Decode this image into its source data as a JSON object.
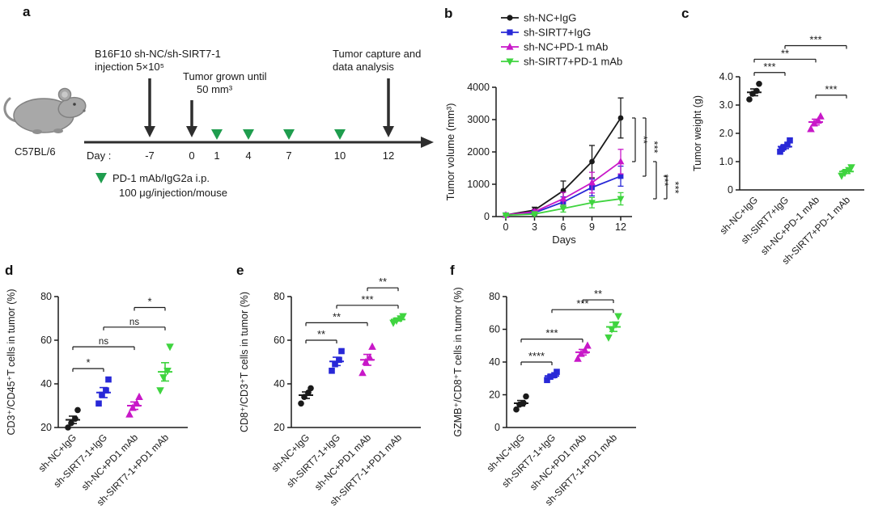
{
  "figure": {
    "panel_labels": {
      "a": "a",
      "b": "b",
      "c": "c",
      "d": "d",
      "e": "e",
      "f": "f"
    }
  },
  "timeline": {
    "strain": "C57BL/6",
    "day_axis_label": "Day :",
    "days": [
      "-7",
      "0",
      "1",
      "4",
      "7",
      "10",
      "12"
    ],
    "injection_line1": "B16F10 sh-NC/sh-SIRT7-1",
    "injection_line2": "injection 5×10⁵",
    "tumor_line1": "Tumor grown until",
    "tumor_line2": "50 mm³",
    "capture_line1": "Tumor capture and",
    "capture_line2": "data analysis",
    "dosing_line1": "PD-1 mAb/IgG2a i.p.",
    "dosing_line2": "100 μg/injection/mouse",
    "dose_marker_color": "#1f9d4e"
  },
  "chart_data": [
    {
      "panel": "b",
      "type": "line",
      "xlabel": "Days",
      "ylabel": "Tumor volume (mm³)",
      "x": [
        0,
        3,
        6,
        9,
        12
      ],
      "xticks": [
        "0",
        "3",
        "6",
        "9",
        "12"
      ],
      "ylim": [
        0,
        4000
      ],
      "yticks": [
        0,
        1000,
        2000,
        3000,
        4000
      ],
      "legend_position": "top",
      "series": [
        {
          "name": "sh-NC+IgG",
          "color": "#1a1a1a",
          "marker": "circle",
          "values": [
            50,
            200,
            800,
            1700,
            3050
          ],
          "errors": [
            30,
            90,
            300,
            500,
            620
          ]
        },
        {
          "name": "sh-SIRT7+IgG",
          "color": "#2828d7",
          "marker": "square",
          "values": [
            45,
            120,
            450,
            900,
            1250
          ],
          "errors": [
            25,
            60,
            160,
            260,
            310
          ]
        },
        {
          "name": "sh-NC+PD-1 mAb",
          "color": "#c818c8",
          "marker": "triangle-up",
          "values": [
            48,
            150,
            550,
            1050,
            1700
          ],
          "errors": [
            25,
            70,
            200,
            320,
            380
          ]
        },
        {
          "name": "sh-SIRT7+PD-1 mAb",
          "color": "#3fd43f",
          "marker": "triangle-down",
          "values": [
            40,
            80,
            250,
            430,
            550
          ],
          "errors": [
            20,
            40,
            110,
            160,
            190
          ]
        }
      ],
      "brackets": [
        {
          "col": 0,
          "y1": 3050,
          "y2": 1700,
          "label": "**"
        },
        {
          "col": 1,
          "y1": 3050,
          "y2": 1250,
          "label": "***"
        },
        {
          "col": 2,
          "y1": 1700,
          "y2": 550,
          "label": "***"
        },
        {
          "col": 3,
          "y1": 1250,
          "y2": 550,
          "label": "***"
        }
      ]
    },
    {
      "panel": "c",
      "type": "dot",
      "ylabel": "Tumor weight (g)",
      "ylim": [
        0,
        4
      ],
      "yticks": [
        0,
        1,
        2,
        3,
        4
      ],
      "ytick_labels": [
        "0",
        "1.0",
        "2.0",
        "3.0",
        "4.0"
      ],
      "groups": [
        {
          "label": "sh-NC+IgG",
          "color": "#1a1a1a",
          "marker": "circle",
          "points": [
            3.2,
            3.4,
            3.5,
            3.75
          ],
          "mean": 3.45,
          "sem": 0.12
        },
        {
          "label": "sh-SIRT7+IgG",
          "color": "#2828d7",
          "marker": "square",
          "points": [
            1.35,
            1.5,
            1.6,
            1.75,
            1.45
          ],
          "mean": 1.53,
          "sem": 0.07
        },
        {
          "label": "sh-NC+PD-1 mAb",
          "color": "#c818c8",
          "marker": "triangle-up",
          "points": [
            2.15,
            2.35,
            2.45,
            2.6
          ],
          "mean": 2.4,
          "sem": 0.1
        },
        {
          "label": "sh-SIRT7+PD-1 mAb",
          "color": "#3fd43f",
          "marker": "triangle-down",
          "points": [
            0.5,
            0.6,
            0.7,
            0.8
          ],
          "mean": 0.65,
          "sem": 0.07
        }
      ],
      "brackets": [
        {
          "g1": 0,
          "g2": 1,
          "y": 4.15,
          "label": "***"
        },
        {
          "g1": 0,
          "g2": 2,
          "y": 4.62,
          "label": "**"
        },
        {
          "g1": 1,
          "g2": 3,
          "y": 5.1,
          "label": "***"
        },
        {
          "g1": 2,
          "g2": 3,
          "y": 3.35,
          "label": "***"
        }
      ]
    },
    {
      "panel": "d",
      "type": "dot",
      "ylabel": "CD3⁺/CD45⁺T cells in tumor (%)",
      "ylim": [
        20,
        80
      ],
      "yticks": [
        20,
        40,
        60,
        80
      ],
      "ytick_labels": [
        "20",
        "40",
        "60",
        "80"
      ],
      "groups": [
        {
          "label": "sh-NC+IgG",
          "color": "#1a1a1a",
          "marker": "circle",
          "points": [
            20,
            22,
            24,
            28
          ],
          "mean": 23.5,
          "sem": 1.7
        },
        {
          "label": "sh-SIRT7-1+IgG",
          "color": "#2828d7",
          "marker": "square",
          "points": [
            31,
            35,
            37,
            42
          ],
          "mean": 36,
          "sem": 2.3
        },
        {
          "label": "sh-NC+PD1 mAb",
          "color": "#c818c8",
          "marker": "triangle-up",
          "points": [
            26,
            29,
            31,
            34
          ],
          "mean": 30,
          "sem": 1.7
        },
        {
          "label": "sh-SIRT7-1+PD1 mAb",
          "color": "#3fd43f",
          "marker": "triangle-down",
          "points": [
            37,
            43,
            46,
            57
          ],
          "mean": 45.5,
          "sem": 4.2
        }
      ],
      "brackets": [
        {
          "g1": 0,
          "g2": 1,
          "y": 47,
          "label": "*"
        },
        {
          "g1": 0,
          "g2": 2,
          "y": 57,
          "label": "ns"
        },
        {
          "g1": 1,
          "g2": 3,
          "y": 66,
          "label": "ns"
        },
        {
          "g1": 2,
          "g2": 3,
          "y": 75,
          "label": "*"
        }
      ]
    },
    {
      "panel": "e",
      "type": "dot",
      "ylabel": "CD8⁺/CD3⁺T cells in tumor (%)",
      "ylim": [
        20,
        80
      ],
      "yticks": [
        20,
        40,
        60,
        80
      ],
      "ytick_labels": [
        "20",
        "40",
        "60",
        "80"
      ],
      "groups": [
        {
          "label": "sh-NC+IgG",
          "color": "#1a1a1a",
          "marker": "circle",
          "points": [
            31,
            34,
            36,
            38
          ],
          "mean": 34.8,
          "sem": 1.5
        },
        {
          "label": "sh-SIRT7-1+IgG",
          "color": "#2828d7",
          "marker": "square",
          "points": [
            46,
            49,
            51,
            55
          ],
          "mean": 50.3,
          "sem": 1.9
        },
        {
          "label": "sh-NC+PD1 mAb",
          "color": "#c818c8",
          "marker": "triangle-up",
          "points": [
            45,
            50,
            52,
            57
          ],
          "mean": 51,
          "sem": 2.5
        },
        {
          "label": "sh-SIRT7-1+PD1 mAb",
          "color": "#3fd43f",
          "marker": "triangle-down",
          "points": [
            68,
            69,
            70,
            71
          ],
          "mean": 69.5,
          "sem": 0.7
        }
      ],
      "brackets": [
        {
          "g1": 0,
          "g2": 1,
          "y": 60,
          "label": "**"
        },
        {
          "g1": 0,
          "g2": 2,
          "y": 68,
          "label": "**"
        },
        {
          "g1": 1,
          "g2": 3,
          "y": 76,
          "label": "***"
        },
        {
          "g1": 2,
          "g2": 3,
          "y": 84,
          "label": "**"
        }
      ]
    },
    {
      "panel": "f",
      "type": "dot",
      "ylabel": "GZMB⁺/CD8⁺T cells in tumor (%)",
      "ylim": [
        0,
        80
      ],
      "yticks": [
        0,
        20,
        40,
        60,
        80
      ],
      "ytick_labels": [
        "0",
        "20",
        "40",
        "60",
        "80"
      ],
      "groups": [
        {
          "label": "sh-NC+IgG",
          "color": "#1a1a1a",
          "marker": "circle",
          "points": [
            11,
            14,
            15,
            19
          ],
          "mean": 14.8,
          "sem": 1.7
        },
        {
          "label": "sh-SIRT7-1+IgG",
          "color": "#2828d7",
          "marker": "square",
          "points": [
            29,
            31,
            32,
            34
          ],
          "mean": 31.5,
          "sem": 1.1
        },
        {
          "label": "sh-NC+PD1 mAb",
          "color": "#c818c8",
          "marker": "triangle-up",
          "points": [
            42,
            45,
            47,
            50
          ],
          "mean": 46,
          "sem": 1.7
        },
        {
          "label": "sh-SIRT7-1+PD1 mAb",
          "color": "#3fd43f",
          "marker": "triangle-down",
          "points": [
            55,
            60,
            63,
            68
          ],
          "mean": 61.5,
          "sem": 2.8
        }
      ],
      "brackets": [
        {
          "g1": 0,
          "g2": 1,
          "y": 40,
          "label": "****"
        },
        {
          "g1": 0,
          "g2": 2,
          "y": 54,
          "label": "***"
        },
        {
          "g1": 1,
          "g2": 3,
          "y": 72,
          "label": "***"
        },
        {
          "g1": 2,
          "g2": 3,
          "y": 78,
          "label": "**"
        }
      ]
    }
  ]
}
